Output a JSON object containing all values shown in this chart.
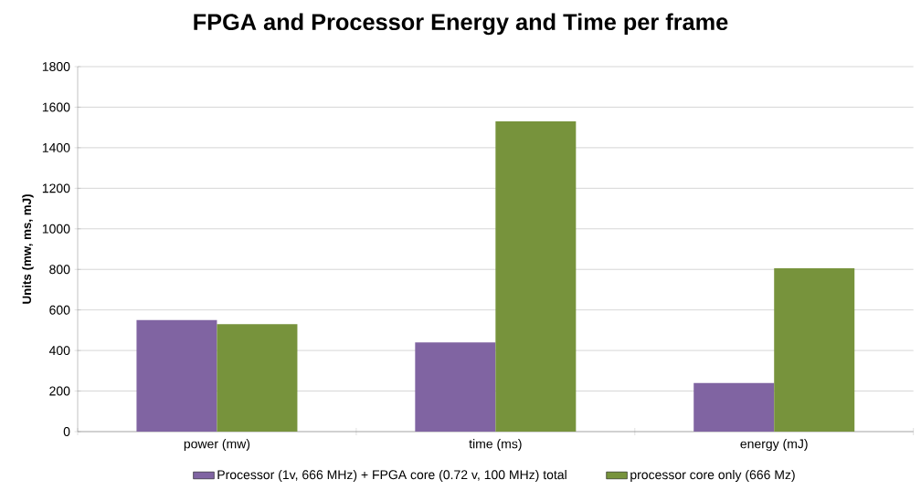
{
  "chart_data": {
    "type": "bar",
    "title": "FPGA and Processor  Energy and Time per frame",
    "ylabel": "Units (mw, ms, mJ)",
    "categories": [
      "power (mw)",
      "time (ms)",
      "energy (mJ)"
    ],
    "series": [
      {
        "name": "Processor (1v, 666 MHz) + FPGA core (0.72 v, 100 MHz) total",
        "color": "#8064a2",
        "values": [
          550,
          440,
          240
        ]
      },
      {
        "name": "processor core only (666 Mz)",
        "color": "#77933c",
        "values": [
          530,
          1530,
          805
        ]
      }
    ],
    "ylim": [
      0,
      1800
    ],
    "yticks": [
      0,
      200,
      400,
      600,
      800,
      1000,
      1200,
      1400,
      1600,
      1800
    ],
    "grid": "y",
    "legend": "bottom"
  }
}
